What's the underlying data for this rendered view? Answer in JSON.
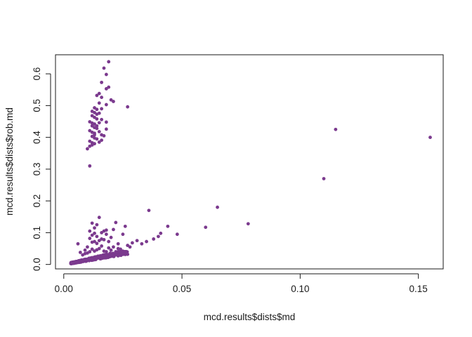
{
  "chart_data": {
    "type": "scatter",
    "title": "",
    "xlabel": "mcd.results$dists$md",
    "ylabel": "mcd.results$dists$rob.md",
    "xlim": [
      -0.0035,
      0.1605
    ],
    "ylim": [
      -0.014,
      0.66
    ],
    "x_ticks": [
      0.0,
      0.05,
      0.1,
      0.15
    ],
    "x_tick_labels": [
      "0.00",
      "0.05",
      "0.10",
      "0.15"
    ],
    "y_ticks": [
      0.0,
      0.1,
      0.2,
      0.3,
      0.4,
      0.5,
      0.6
    ],
    "y_tick_labels": [
      "0.0",
      "0.1",
      "0.2",
      "0.3",
      "0.4",
      "0.5",
      "0.6"
    ],
    "grid": false,
    "legend": "none",
    "point_color": "#7b3a8e",
    "points": [
      [
        0.019,
        0.638
      ],
      [
        0.017,
        0.618
      ],
      [
        0.018,
        0.598
      ],
      [
        0.019,
        0.558
      ],
      [
        0.018,
        0.553
      ],
      [
        0.016,
        0.573
      ],
      [
        0.015,
        0.538
      ],
      [
        0.014,
        0.532
      ],
      [
        0.016,
        0.526
      ],
      [
        0.02,
        0.518
      ],
      [
        0.021,
        0.513
      ],
      [
        0.015,
        0.508
      ],
      [
        0.018,
        0.503
      ],
      [
        0.027,
        0.496
      ],
      [
        0.013,
        0.493
      ],
      [
        0.014,
        0.488
      ],
      [
        0.016,
        0.49
      ],
      [
        0.012,
        0.482
      ],
      [
        0.013,
        0.478
      ],
      [
        0.014,
        0.473
      ],
      [
        0.015,
        0.476
      ],
      [
        0.012,
        0.468
      ],
      [
        0.013,
        0.463
      ],
      [
        0.014,
        0.458
      ],
      [
        0.016,
        0.456
      ],
      [
        0.011,
        0.449
      ],
      [
        0.012,
        0.445
      ],
      [
        0.013,
        0.442
      ],
      [
        0.015,
        0.446
      ],
      [
        0.018,
        0.448
      ],
      [
        0.012,
        0.436
      ],
      [
        0.013,
        0.431
      ],
      [
        0.014,
        0.428
      ],
      [
        0.011,
        0.421
      ],
      [
        0.012,
        0.416
      ],
      [
        0.013,
        0.413
      ],
      [
        0.015,
        0.418
      ],
      [
        0.016,
        0.408
      ],
      [
        0.018,
        0.426
      ],
      [
        0.012,
        0.403
      ],
      [
        0.013,
        0.398
      ],
      [
        0.014,
        0.395
      ],
      [
        0.011,
        0.388
      ],
      [
        0.012,
        0.383
      ],
      [
        0.013,
        0.38
      ],
      [
        0.015,
        0.385
      ],
      [
        0.016,
        0.391
      ],
      [
        0.011,
        0.372
      ],
      [
        0.012,
        0.376
      ],
      [
        0.01,
        0.364
      ],
      [
        0.013,
        0.408
      ],
      [
        0.014,
        0.436
      ],
      [
        0.017,
        0.405
      ],
      [
        0.011,
        0.31
      ],
      [
        0.155,
        0.4
      ],
      [
        0.115,
        0.425
      ],
      [
        0.11,
        0.27
      ],
      [
        0.078,
        0.128
      ],
      [
        0.065,
        0.18
      ],
      [
        0.06,
        0.117
      ],
      [
        0.048,
        0.095
      ],
      [
        0.044,
        0.12
      ],
      [
        0.041,
        0.098
      ],
      [
        0.04,
        0.088
      ],
      [
        0.038,
        0.08
      ],
      [
        0.036,
        0.17
      ],
      [
        0.035,
        0.072
      ],
      [
        0.033,
        0.065
      ],
      [
        0.031,
        0.075
      ],
      [
        0.029,
        0.068
      ],
      [
        0.028,
        0.055
      ],
      [
        0.027,
        0.06
      ],
      [
        0.026,
        0.12
      ],
      [
        0.025,
        0.095
      ],
      [
        0.024,
        0.048
      ],
      [
        0.023,
        0.065
      ],
      [
        0.022,
        0.132
      ],
      [
        0.021,
        0.11
      ],
      [
        0.02,
        0.085
      ],
      [
        0.019,
        0.072
      ],
      [
        0.018,
        0.095
      ],
      [
        0.017,
        0.105
      ],
      [
        0.016,
        0.08
      ],
      [
        0.015,
        0.148
      ],
      [
        0.014,
        0.125
      ],
      [
        0.013,
        0.098
      ],
      [
        0.012,
        0.092
      ],
      [
        0.011,
        0.082
      ],
      [
        0.012,
        0.13
      ],
      [
        0.013,
        0.115
      ],
      [
        0.014,
        0.088
      ],
      [
        0.015,
        0.075
      ],
      [
        0.016,
        0.1
      ],
      [
        0.017,
        0.078
      ],
      [
        0.018,
        0.108
      ],
      [
        0.013,
        0.072
      ],
      [
        0.014,
        0.066
      ],
      [
        0.012,
        0.07
      ],
      [
        0.011,
        0.105
      ],
      [
        0.006,
        0.065
      ],
      [
        0.007,
        0.038
      ],
      [
        0.009,
        0.045
      ],
      [
        0.01,
        0.055
      ],
      [
        0.008,
        0.03
      ],
      [
        0.02,
        0.045
      ],
      [
        0.022,
        0.04
      ],
      [
        0.024,
        0.035
      ],
      [
        0.026,
        0.038
      ],
      [
        0.019,
        0.052
      ],
      [
        0.021,
        0.055
      ],
      [
        0.023,
        0.05
      ],
      [
        0.017,
        0.042
      ],
      [
        0.016,
        0.058
      ],
      [
        0.015,
        0.05
      ],
      [
        0.014,
        0.046
      ],
      [
        0.013,
        0.042
      ],
      [
        0.012,
        0.048
      ],
      [
        0.011,
        0.04
      ],
      [
        0.01,
        0.036
      ],
      [
        0.009,
        0.034
      ],
      [
        0.018,
        0.04
      ],
      [
        0.025,
        0.042
      ],
      [
        0.027,
        0.032
      ]
    ],
    "dense_cluster": {
      "count": 380,
      "x_range": [
        0.003,
        0.027
      ],
      "y_range": [
        0.003,
        0.04
      ]
    }
  }
}
